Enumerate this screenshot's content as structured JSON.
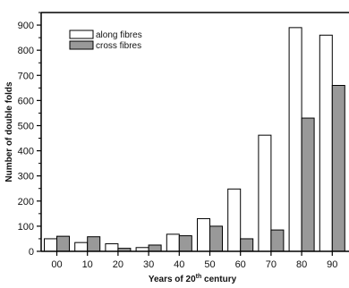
{
  "chart_data": {
    "type": "bar",
    "categories": [
      "00",
      "10",
      "20",
      "30",
      "40",
      "50",
      "60",
      "70",
      "80",
      "90"
    ],
    "series": [
      {
        "name": "along fibres",
        "values": [
          50,
          35,
          30,
          15,
          68,
          130,
          248,
          462,
          890,
          860
        ],
        "color": "#ffffff"
      },
      {
        "name": "cross fibres",
        "values": [
          60,
          58,
          12,
          25,
          62,
          100,
          50,
          85,
          530,
          660
        ],
        "color": "#999999"
      }
    ],
    "xlabel": "Years of 20th century",
    "ylabel": "Number of double folds",
    "ylim": [
      0,
      950
    ],
    "yticks": [
      0,
      100,
      200,
      300,
      400,
      500,
      600,
      700,
      800,
      900
    ],
    "legend_position": "top-left",
    "grid": false
  },
  "xlabel_parts": {
    "main": "Years of 20",
    "sup": "th",
    "tail": " century"
  }
}
